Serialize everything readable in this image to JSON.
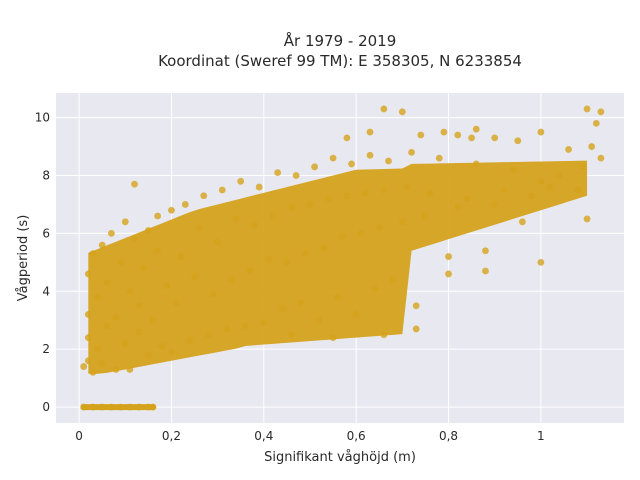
{
  "chart_data": {
    "type": "scatter",
    "title": "År 1979 - 2019",
    "subtitle": "Koordinat (Sweref 99 TM): E 358305, N 6233854",
    "xlabel": "Signifikant våghöjd (m)",
    "ylabel": "Vågperiod (s)",
    "xlim": [
      -0.05,
      1.18
    ],
    "ylim": [
      -0.55,
      10.85
    ],
    "x_ticks": [
      0,
      0.2,
      0.4,
      0.6,
      0.8,
      1
    ],
    "x_tick_labels": [
      "0",
      "0,2",
      "0,4",
      "0,6",
      "0,8",
      "1"
    ],
    "y_ticks": [
      0,
      2,
      4,
      6,
      8,
      10
    ],
    "y_tick_labels": [
      "0",
      "2",
      "4",
      "6",
      "8",
      "10"
    ],
    "grid": true,
    "colors": {
      "marker": "#D4A21C",
      "plot_background": "#E8E8F0",
      "grid": "#ffffff"
    },
    "series": [
      {
        "points": [
          [
            0.01,
            0
          ],
          [
            0.03,
            0
          ],
          [
            0.05,
            0
          ],
          [
            0.07,
            0
          ],
          [
            0.09,
            0
          ],
          [
            0.11,
            0
          ],
          [
            0.13,
            0
          ],
          [
            0.15,
            0
          ],
          [
            0.16,
            0
          ],
          [
            0.01,
            1.4
          ],
          [
            0.02,
            1.6
          ],
          [
            0.02,
            2.4
          ],
          [
            0.02,
            3.2
          ],
          [
            0.02,
            4.6
          ],
          [
            0.03,
            5.3
          ],
          [
            0.03,
            1.2
          ],
          [
            0.04,
            2.0
          ],
          [
            0.04,
            3.8
          ],
          [
            0.05,
            5.6
          ],
          [
            0.05,
            1.5
          ],
          [
            0.06,
            2.8
          ],
          [
            0.06,
            4.3
          ],
          [
            0.07,
            6.0
          ],
          [
            0.08,
            1.3
          ],
          [
            0.08,
            3.1
          ],
          [
            0.09,
            5.0
          ],
          [
            0.1,
            2.2
          ],
          [
            0.1,
            6.4
          ],
          [
            0.11,
            1.3
          ],
          [
            0.11,
            4.0
          ],
          [
            0.12,
            5.8
          ],
          [
            0.12,
            7.7
          ],
          [
            0.13,
            2.6
          ],
          [
            0.13,
            3.5
          ],
          [
            0.14,
            4.8
          ],
          [
            0.15,
            6.1
          ],
          [
            0.15,
            1.8
          ],
          [
            0.16,
            3.0
          ],
          [
            0.17,
            5.4
          ],
          [
            0.17,
            6.6
          ],
          [
            0.18,
            2.1
          ],
          [
            0.19,
            4.2
          ],
          [
            0.2,
            6.8
          ],
          [
            0.2,
            1.9
          ],
          [
            0.21,
            3.6
          ],
          [
            0.22,
            5.2
          ],
          [
            0.23,
            7.0
          ],
          [
            0.24,
            2.3
          ],
          [
            0.25,
            4.5
          ],
          [
            0.26,
            6.2
          ],
          [
            0.27,
            7.3
          ],
          [
            0.28,
            2.5
          ],
          [
            0.29,
            3.9
          ],
          [
            0.3,
            5.7
          ],
          [
            0.31,
            7.5
          ],
          [
            0.32,
            2.7
          ],
          [
            0.33,
            4.4
          ],
          [
            0.34,
            6.5
          ],
          [
            0.35,
            7.8
          ],
          [
            0.36,
            2.8
          ],
          [
            0.37,
            4.7
          ],
          [
            0.38,
            6.3
          ],
          [
            0.39,
            7.6
          ],
          [
            0.4,
            2.9
          ],
          [
            0.41,
            5.1
          ],
          [
            0.42,
            6.6
          ],
          [
            0.43,
            8.1
          ],
          [
            0.44,
            3.4
          ],
          [
            0.45,
            5.0
          ],
          [
            0.46,
            6.9
          ],
          [
            0.47,
            8.0
          ],
          [
            0.48,
            3.6
          ],
          [
            0.49,
            5.3
          ],
          [
            0.5,
            7.0
          ],
          [
            0.51,
            8.3
          ],
          [
            0.52,
            3.0
          ],
          [
            0.53,
            5.5
          ],
          [
            0.54,
            7.2
          ],
          [
            0.55,
            8.6
          ],
          [
            0.56,
            3.8
          ],
          [
            0.57,
            5.9
          ],
          [
            0.58,
            7.3
          ],
          [
            0.59,
            8.4
          ],
          [
            0.6,
            3.2
          ],
          [
            0.61,
            6.0
          ],
          [
            0.62,
            7.4
          ],
          [
            0.63,
            8.7
          ],
          [
            0.64,
            4.1
          ],
          [
            0.65,
            6.2
          ],
          [
            0.66,
            7.5
          ],
          [
            0.67,
            8.5
          ],
          [
            0.68,
            4.4
          ],
          [
            0.7,
            6.4
          ],
          [
            0.71,
            7.6
          ],
          [
            0.72,
            8.8
          ],
          [
            0.73,
            2.7
          ],
          [
            0.75,
            6.6
          ],
          [
            0.76,
            7.4
          ],
          [
            0.78,
            8.6
          ],
          [
            0.8,
            5.2
          ],
          [
            0.82,
            6.9
          ],
          [
            0.84,
            7.2
          ],
          [
            0.86,
            8.4
          ],
          [
            0.88,
            5.4
          ],
          [
            0.9,
            7.0
          ],
          [
            0.92,
            7.5
          ],
          [
            0.94,
            8.2
          ],
          [
            0.96,
            6.4
          ],
          [
            0.98,
            7.3
          ],
          [
            1.0,
            7.8
          ],
          [
            1.0,
            5.0
          ],
          [
            1.02,
            7.6
          ],
          [
            1.04,
            8.0
          ],
          [
            1.06,
            8.9
          ],
          [
            1.08,
            7.5
          ],
          [
            1.09,
            8.3
          ],
          [
            1.1,
            6.5
          ],
          [
            1.11,
            9.0
          ],
          [
            1.12,
            9.8
          ],
          [
            1.13,
            8.6
          ],
          [
            0.66,
            10.3
          ],
          [
            0.7,
            10.2
          ],
          [
            0.79,
            9.5
          ],
          [
            0.82,
            9.4
          ],
          [
            0.85,
            9.3
          ],
          [
            0.9,
            9.3
          ],
          [
            0.95,
            9.2
          ],
          [
            1.0,
            9.5
          ],
          [
            1.1,
            10.3
          ],
          [
            1.13,
            10.2
          ],
          [
            0.58,
            9.3
          ],
          [
            0.63,
            9.5
          ],
          [
            0.74,
            9.4
          ],
          [
            0.86,
            9.6
          ],
          [
            0.73,
            3.5
          ],
          [
            0.8,
            4.6
          ],
          [
            0.88,
            4.7
          ],
          [
            0.66,
            2.5
          ],
          [
            0.55,
            2.4
          ],
          [
            0.46,
            2.5
          ]
        ]
      }
    ]
  }
}
